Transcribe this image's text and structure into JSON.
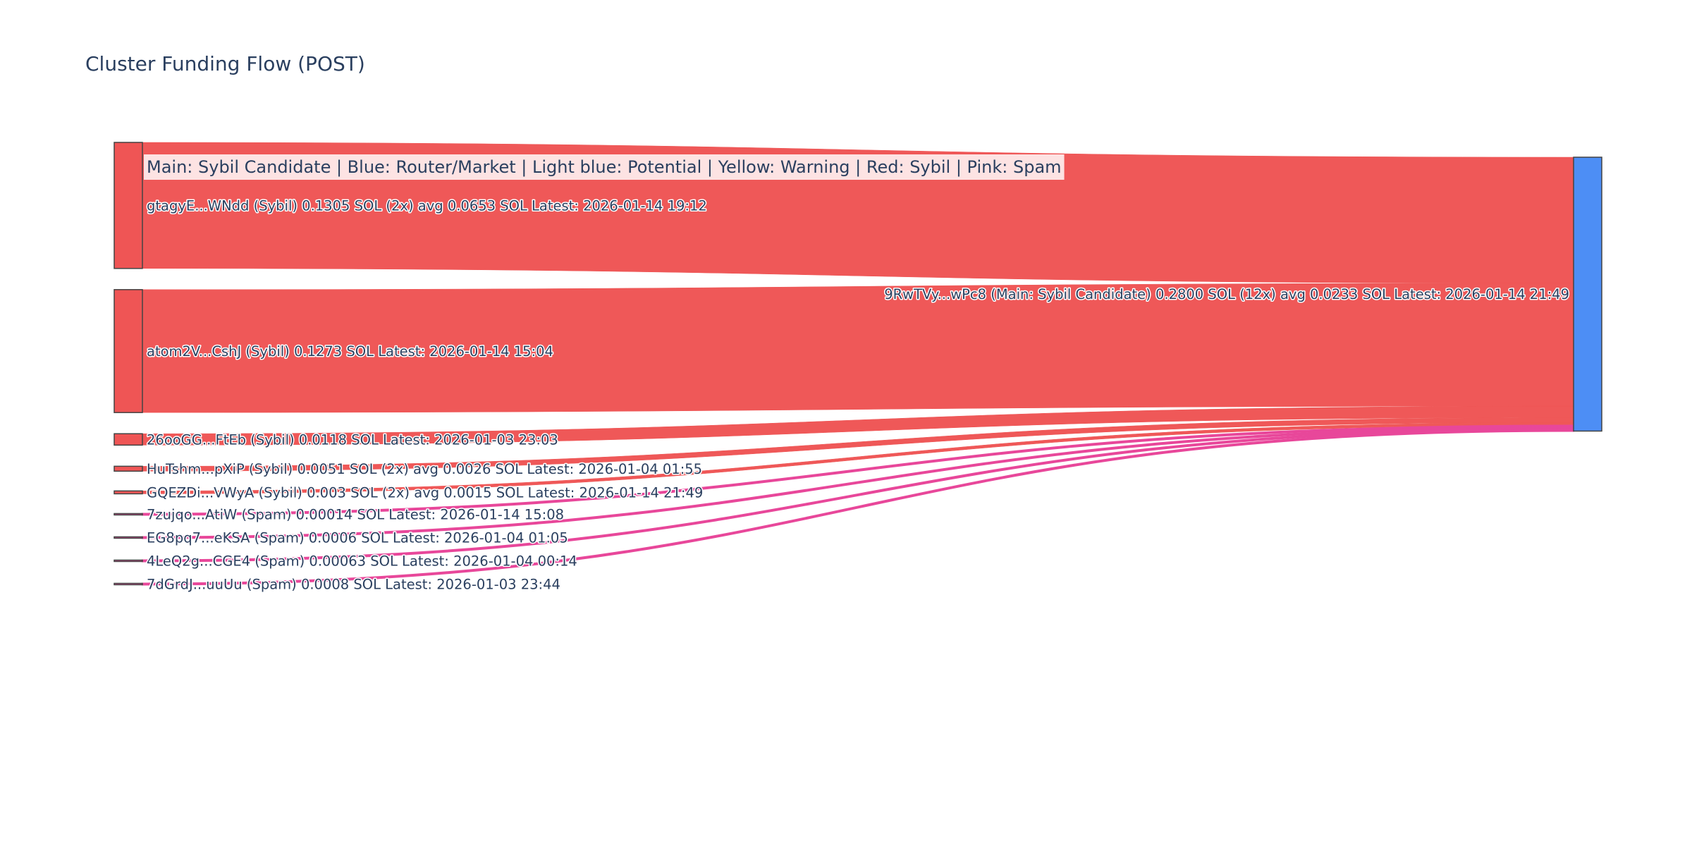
{
  "chart_data": {
    "type": "sankey",
    "title": "Cluster Funding Flow (POST)",
    "legend_text": "Main: Sybil Candidate  |  Blue: Router/Market | Light blue: Potential | Yellow: Warning | Red: Sybil | Pink: Spam",
    "colors": {
      "sybil": "#ef5555",
      "spam": "#e8479a",
      "main": "#4d8ef5",
      "legend_bg": "#fde3e3",
      "text": "#2a3f5f"
    },
    "target": {
      "label": "9RwTVy...wPc8 (Main: Sybil Candidate) 0.2800 SOL (12x) avg 0.0233 SOL Latest: 2026-01-14 21:49",
      "value": 0.28,
      "category": "main"
    },
    "sources": [
      {
        "label": "gtagyE...WNdd (Sybil) 0.1305 SOL (2x) avg 0.0653 SOL Latest: 2026-01-14 19:12",
        "value": 0.1305,
        "category": "sybil"
      },
      {
        "label": "atom2V...CshJ (Sybil) 0.1273 SOL Latest: 2026-01-14 15:04",
        "value": 0.1273,
        "category": "sybil"
      },
      {
        "label": "26ooGG...FtEb (Sybil) 0.0118 SOL Latest: 2026-01-03 23:03",
        "value": 0.0118,
        "category": "sybil"
      },
      {
        "label": "HuTshm...pXiP (Sybil) 0.0051 SOL (2x) avg 0.0026 SOL Latest: 2026-01-04 01:55",
        "value": 0.0051,
        "category": "sybil"
      },
      {
        "label": "GQEZDi...VWyA (Sybil) 0.003 SOL (2x) avg 0.0015 SOL Latest: 2026-01-14 21:49",
        "value": 0.003,
        "category": "sybil"
      },
      {
        "label": "7zujqo...AtiW (Spam) 0.00014 SOL Latest: 2026-01-14 15:08",
        "value": 0.00014,
        "category": "spam"
      },
      {
        "label": "EG8pq7...eKSA (Spam) 0.0006 SOL Latest: 2026-01-04 01:05",
        "value": 0.0006,
        "category": "spam"
      },
      {
        "label": "4LeQ2g...CGE4 (Spam) 0.00063 SOL Latest: 2026-01-04 00:14",
        "value": 0.00063,
        "category": "spam"
      },
      {
        "label": "7dGrdJ...uuUu (Spam) 0.0008 SOL Latest: 2026-01-03 23:44",
        "value": 0.0008,
        "category": "spam"
      }
    ]
  }
}
